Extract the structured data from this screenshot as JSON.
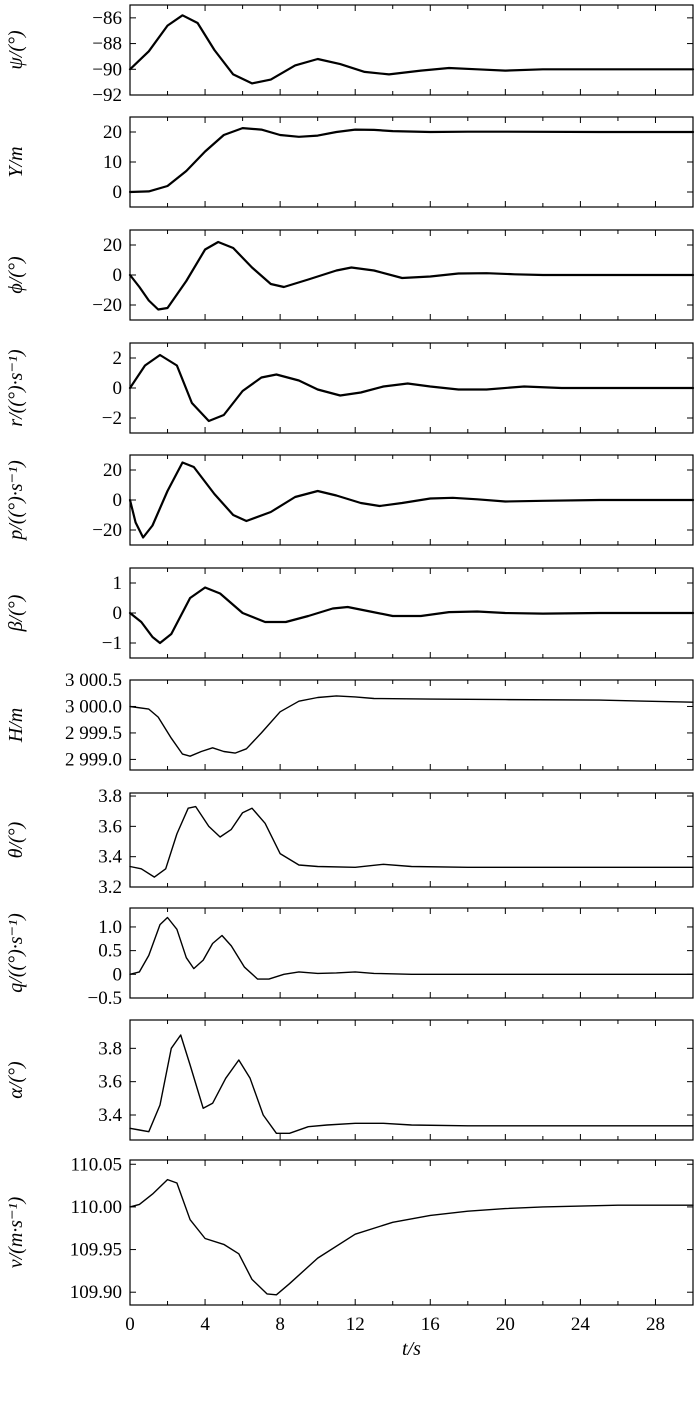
{
  "chart_data": [
    {
      "type": "line",
      "ylabel": "ψ/(°)",
      "yticks": [
        "−86",
        "−88",
        "−90",
        "−92"
      ],
      "ylim": [
        -92,
        -85
      ],
      "series": [
        {
          "values": [
            [
              0,
              -90
            ],
            [
              1,
              -88.6
            ],
            [
              2,
              -86.6
            ],
            [
              2.8,
              -85.8
            ],
            [
              3.6,
              -86.4
            ],
            [
              4.5,
              -88.5
            ],
            [
              5.5,
              -90.4
            ],
            [
              6.5,
              -91.1
            ],
            [
              7.5,
              -90.8
            ],
            [
              8.8,
              -89.7
            ],
            [
              10,
              -89.2
            ],
            [
              11.2,
              -89.6
            ],
            [
              12.5,
              -90.2
            ],
            [
              13.8,
              -90.4
            ],
            [
              15.5,
              -90.1
            ],
            [
              17,
              -89.9
            ],
            [
              18.5,
              -90
            ],
            [
              20,
              -90.1
            ],
            [
              22,
              -90
            ],
            [
              25,
              -90
            ],
            [
              30,
              -90
            ]
          ]
        }
      ]
    },
    {
      "type": "line",
      "ylabel": "Y/m",
      "yticks": [
        "20",
        "10",
        "0"
      ],
      "ylim": [
        -5,
        25
      ],
      "series": [
        {
          "values": [
            [
              0,
              0
            ],
            [
              1,
              0.2
            ],
            [
              2,
              2
            ],
            [
              3,
              7
            ],
            [
              4,
              13.5
            ],
            [
              5,
              19
            ],
            [
              6,
              21.3
            ],
            [
              7,
              20.8
            ],
            [
              8,
              19
            ],
            [
              9,
              18.4
            ],
            [
              10,
              18.8
            ],
            [
              11,
              20
            ],
            [
              12,
              20.8
            ],
            [
              13,
              20.7
            ],
            [
              14,
              20.3
            ],
            [
              16,
              20
            ],
            [
              18,
              20.1
            ],
            [
              20,
              20.1
            ],
            [
              25,
              20
            ],
            [
              30,
              20
            ]
          ]
        }
      ]
    },
    {
      "type": "line",
      "ylabel": "ϕ/(°)",
      "yticks": [
        "20",
        "0",
        "−20"
      ],
      "ylim": [
        -30,
        30
      ],
      "series": [
        {
          "values": [
            [
              0,
              0
            ],
            [
              0.5,
              -8
            ],
            [
              1,
              -17
            ],
            [
              1.5,
              -23
            ],
            [
              2,
              -22
            ],
            [
              3,
              -4
            ],
            [
              4,
              17
            ],
            [
              4.7,
              22
            ],
            [
              5.5,
              18
            ],
            [
              6.5,
              5
            ],
            [
              7.5,
              -6
            ],
            [
              8.2,
              -8
            ],
            [
              9.5,
              -3
            ],
            [
              11,
              3
            ],
            [
              11.8,
              5
            ],
            [
              13,
              3
            ],
            [
              14.5,
              -2
            ],
            [
              16,
              -1
            ],
            [
              17.5,
              1
            ],
            [
              19,
              1.2
            ],
            [
              20.5,
              0.5
            ],
            [
              22,
              0
            ],
            [
              25,
              0
            ],
            [
              30,
              0
            ]
          ]
        }
      ]
    },
    {
      "type": "line",
      "ylabel": "r/((°)·s⁻¹)",
      "yticks": [
        "2",
        "0",
        "−2"
      ],
      "ylim": [
        -3,
        3
      ],
      "series": [
        {
          "values": [
            [
              0,
              0
            ],
            [
              0.8,
              1.5
            ],
            [
              1.6,
              2.2
            ],
            [
              2.5,
              1.5
            ],
            [
              3.3,
              -1
            ],
            [
              4.2,
              -2.2
            ],
            [
              5,
              -1.8
            ],
            [
              6,
              -0.2
            ],
            [
              7,
              0.7
            ],
            [
              7.8,
              0.9
            ],
            [
              9,
              0.5
            ],
            [
              10,
              -0.1
            ],
            [
              11.2,
              -0.5
            ],
            [
              12.3,
              -0.3
            ],
            [
              13.5,
              0.1
            ],
            [
              14.8,
              0.3
            ],
            [
              16,
              0.1
            ],
            [
              17.5,
              -0.1
            ],
            [
              19,
              -0.1
            ],
            [
              21,
              0.1
            ],
            [
              23,
              0
            ],
            [
              30,
              0
            ]
          ]
        }
      ]
    },
    {
      "type": "line",
      "ylabel": "p/((°)·s⁻¹)",
      "yticks": [
        "20",
        "0",
        "−20"
      ],
      "ylim": [
        -30,
        30
      ],
      "series": [
        {
          "values": [
            [
              0,
              0
            ],
            [
              0.3,
              -15
            ],
            [
              0.7,
              -25
            ],
            [
              1.2,
              -17
            ],
            [
              2,
              6
            ],
            [
              2.8,
              25
            ],
            [
              3.4,
              22
            ],
            [
              4.5,
              4
            ],
            [
              5.5,
              -10
            ],
            [
              6.2,
              -14
            ],
            [
              7.5,
              -8
            ],
            [
              8.8,
              2
            ],
            [
              10,
              6
            ],
            [
              11,
              3
            ],
            [
              12.3,
              -2
            ],
            [
              13.3,
              -4
            ],
            [
              14.5,
              -2
            ],
            [
              16,
              1
            ],
            [
              17.2,
              1.5
            ],
            [
              18.5,
              0.5
            ],
            [
              20,
              -1
            ],
            [
              22,
              -0.5
            ],
            [
              25,
              0
            ],
            [
              30,
              0
            ]
          ]
        }
      ]
    },
    {
      "type": "line",
      "ylabel": "β/(°)",
      "yticks": [
        "1",
        "0",
        "−1"
      ],
      "ylim": [
        -1.5,
        1.5
      ],
      "series": [
        {
          "values": [
            [
              0,
              0
            ],
            [
              0.6,
              -0.3
            ],
            [
              1.2,
              -0.8
            ],
            [
              1.6,
              -1
            ],
            [
              2.2,
              -0.7
            ],
            [
              3.2,
              0.5
            ],
            [
              4,
              0.85
            ],
            [
              4.8,
              0.65
            ],
            [
              6,
              0
            ],
            [
              7.2,
              -0.3
            ],
            [
              8.3,
              -0.3
            ],
            [
              9.5,
              -0.1
            ],
            [
              10.8,
              0.15
            ],
            [
              11.6,
              0.2
            ],
            [
              12.8,
              0.05
            ],
            [
              14,
              -0.1
            ],
            [
              15.5,
              -0.1
            ],
            [
              17,
              0.03
            ],
            [
              18.5,
              0.05
            ],
            [
              20,
              0
            ],
            [
              22,
              -0.02
            ],
            [
              25,
              0
            ],
            [
              30,
              0
            ]
          ]
        }
      ]
    },
    {
      "type": "line",
      "ylabel": "H/m",
      "yticks": [
        "3 000.5",
        "3 000.0",
        "2 999.5",
        "2 999.0"
      ],
      "ylim": [
        2998.8,
        3000.5
      ],
      "series": [
        {
          "values": [
            [
              0,
              3000
            ],
            [
              1,
              2999.95
            ],
            [
              1.5,
              2999.8
            ],
            [
              2.2,
              2999.4
            ],
            [
              2.8,
              2999.1
            ],
            [
              3.2,
              2999.06
            ],
            [
              3.8,
              2999.15
            ],
            [
              4.4,
              2999.22
            ],
            [
              5,
              2999.15
            ],
            [
              5.6,
              2999.12
            ],
            [
              6.2,
              2999.2
            ],
            [
              7,
              2999.5
            ],
            [
              8,
              2999.9
            ],
            [
              9,
              3000.1
            ],
            [
              10,
              3000.17
            ],
            [
              11,
              3000.2
            ],
            [
              12,
              3000.18
            ],
            [
              13,
              3000.15
            ],
            [
              16,
              3000.14
            ],
            [
              20,
              3000.13
            ],
            [
              25,
              3000.12
            ],
            [
              30,
              3000.08
            ]
          ]
        }
      ]
    },
    {
      "type": "line",
      "ylabel": "θ/(°)",
      "yticks": [
        "3.8",
        "3.6",
        "3.4",
        "3.2"
      ],
      "ylim": [
        3.2,
        3.82
      ],
      "series": [
        {
          "values": [
            [
              0,
              3.335
            ],
            [
              0.6,
              3.32
            ],
            [
              1.3,
              3.265
            ],
            [
              1.9,
              3.32
            ],
            [
              2.5,
              3.55
            ],
            [
              3.1,
              3.72
            ],
            [
              3.5,
              3.73
            ],
            [
              4.2,
              3.6
            ],
            [
              4.8,
              3.53
            ],
            [
              5.4,
              3.58
            ],
            [
              6,
              3.69
            ],
            [
              6.5,
              3.72
            ],
            [
              7.2,
              3.62
            ],
            [
              8,
              3.42
            ],
            [
              9,
              3.345
            ],
            [
              10,
              3.335
            ],
            [
              12,
              3.33
            ],
            [
              13.5,
              3.35
            ],
            [
              15,
              3.335
            ],
            [
              18,
              3.33
            ],
            [
              30,
              3.33
            ]
          ]
        }
      ]
    },
    {
      "type": "line",
      "ylabel": "q/((°)·s⁻¹)",
      "yticks": [
        "1.0",
        "0.5",
        "0",
        "−0.5"
      ],
      "ylim": [
        -0.5,
        1.4
      ],
      "series": [
        {
          "values": [
            [
              0,
              0
            ],
            [
              0.5,
              0.05
            ],
            [
              1,
              0.4
            ],
            [
              1.6,
              1.05
            ],
            [
              2,
              1.2
            ],
            [
              2.5,
              0.95
            ],
            [
              3,
              0.35
            ],
            [
              3.4,
              0.12
            ],
            [
              3.9,
              0.3
            ],
            [
              4.4,
              0.65
            ],
            [
              4.9,
              0.82
            ],
            [
              5.4,
              0.6
            ],
            [
              6.1,
              0.15
            ],
            [
              6.8,
              -0.1
            ],
            [
              7.4,
              -0.1
            ],
            [
              8.2,
              0
            ],
            [
              9,
              0.05
            ],
            [
              10,
              0.02
            ],
            [
              11,
              0.03
            ],
            [
              12,
              0.05
            ],
            [
              13,
              0.02
            ],
            [
              15,
              0
            ],
            [
              20,
              0
            ],
            [
              30,
              0
            ]
          ]
        }
      ]
    },
    {
      "type": "line",
      "ylabel": "α/(°)",
      "yticks": [
        "3.8",
        "3.6",
        "3.4"
      ],
      "ylim": [
        3.25,
        3.97
      ],
      "series": [
        {
          "values": [
            [
              0,
              3.32
            ],
            [
              0.5,
              3.31
            ],
            [
              1,
              3.3
            ],
            [
              1.6,
              3.46
            ],
            [
              2.2,
              3.8
            ],
            [
              2.7,
              3.88
            ],
            [
              3.2,
              3.7
            ],
            [
              3.9,
              3.44
            ],
            [
              4.4,
              3.47
            ],
            [
              5.1,
              3.62
            ],
            [
              5.8,
              3.73
            ],
            [
              6.4,
              3.62
            ],
            [
              7.1,
              3.4
            ],
            [
              7.8,
              3.29
            ],
            [
              8.5,
              3.29
            ],
            [
              9.5,
              3.33
            ],
            [
              10.5,
              3.34
            ],
            [
              12,
              3.35
            ],
            [
              13.5,
              3.35
            ],
            [
              15,
              3.34
            ],
            [
              18,
              3.335
            ],
            [
              30,
              3.335
            ]
          ]
        }
      ]
    },
    {
      "type": "line",
      "ylabel": "v/(m·s⁻¹)",
      "xlabel": "t/s",
      "xticks": [
        "0",
        "4",
        "8",
        "12",
        "16",
        "20",
        "24",
        "28"
      ],
      "xlim": [
        0,
        30
      ],
      "yticks": [
        "110.05",
        "110.00",
        "109.95",
        "109.90"
      ],
      "ylim": [
        109.885,
        110.055
      ],
      "series": [
        {
          "values": [
            [
              0,
              110
            ],
            [
              0.5,
              110.003
            ],
            [
              1.2,
              110.015
            ],
            [
              2,
              110.032
            ],
            [
              2.5,
              110.028
            ],
            [
              3.2,
              109.985
            ],
            [
              4,
              109.963
            ],
            [
              5,
              109.956
            ],
            [
              5.8,
              109.945
            ],
            [
              6.5,
              109.915
            ],
            [
              7.3,
              109.898
            ],
            [
              7.8,
              109.897
            ],
            [
              8.5,
              109.91
            ],
            [
              10,
              109.94
            ],
            [
              12,
              109.968
            ],
            [
              14,
              109.982
            ],
            [
              16,
              109.99
            ],
            [
              18,
              109.995
            ],
            [
              20,
              109.998
            ],
            [
              22,
              110
            ],
            [
              24,
              110.001
            ],
            [
              26,
              110.002
            ],
            [
              30,
              110.002
            ]
          ]
        }
      ]
    }
  ]
}
